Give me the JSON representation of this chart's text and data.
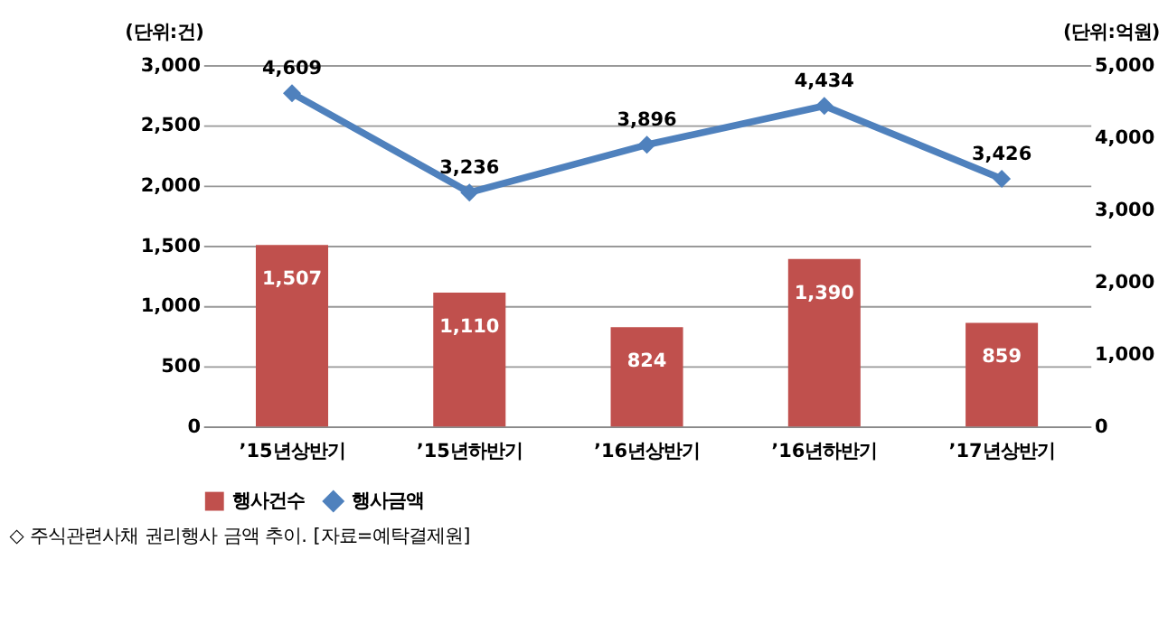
{
  "chart_data": {
    "type": "bar",
    "categories": [
      "’15년상반기",
      "’15년하반기",
      "’16년상반기",
      "’16년하반기",
      "’17년상반기"
    ],
    "ylabel": "(단위:건)",
    "y2label": "(단위:억원)",
    "ylim": [
      0,
      3000
    ],
    "yticks": [
      0,
      {
        "value": 500,
        "label": "500"
      },
      {
        "value": 1000,
        "label": "1,000"
      },
      {
        "value": 1500,
        "label": "1,500"
      },
      {
        "value": 2000,
        "label": "2,000"
      },
      {
        "value": 2500,
        "label": "2,500"
      },
      {
        "value": 3000,
        "label": "3,000"
      }
    ],
    "y2lim": [
      0,
      5000
    ],
    "y2ticks": [
      0,
      {
        "value": 1000,
        "label": "1,000"
      },
      {
        "value": 2000,
        "label": "2,000"
      },
      {
        "value": 3000,
        "label": "3,000"
      },
      {
        "value": 4000,
        "label": "4,000"
      },
      {
        "value": 5000,
        "label": "5,000"
      }
    ],
    "series": [
      {
        "name": "행사건수",
        "color": "#c0504d",
        "values": [
          1507,
          1110,
          824,
          1390,
          859
        ],
        "value_labels": [
          "1,507",
          "1,110",
          "824",
          "1,390",
          "859"
        ]
      },
      {
        "name": "행사금액",
        "type": "line",
        "axis": "y2",
        "color": "#4f81bd",
        "values": [
          4609,
          3236,
          3896,
          4434,
          3426
        ],
        "value_labels": [
          "4,609",
          "3,236",
          "3,896",
          "4,434",
          "3,426"
        ]
      }
    ],
    "data_labels": true,
    "grid": "y",
    "legend": "bottom",
    "marker": "diamond",
    "annotations": [
      "◇ 주식관련사채 권리행사 금액 추이. [자료=예탁결제원]"
    ]
  }
}
